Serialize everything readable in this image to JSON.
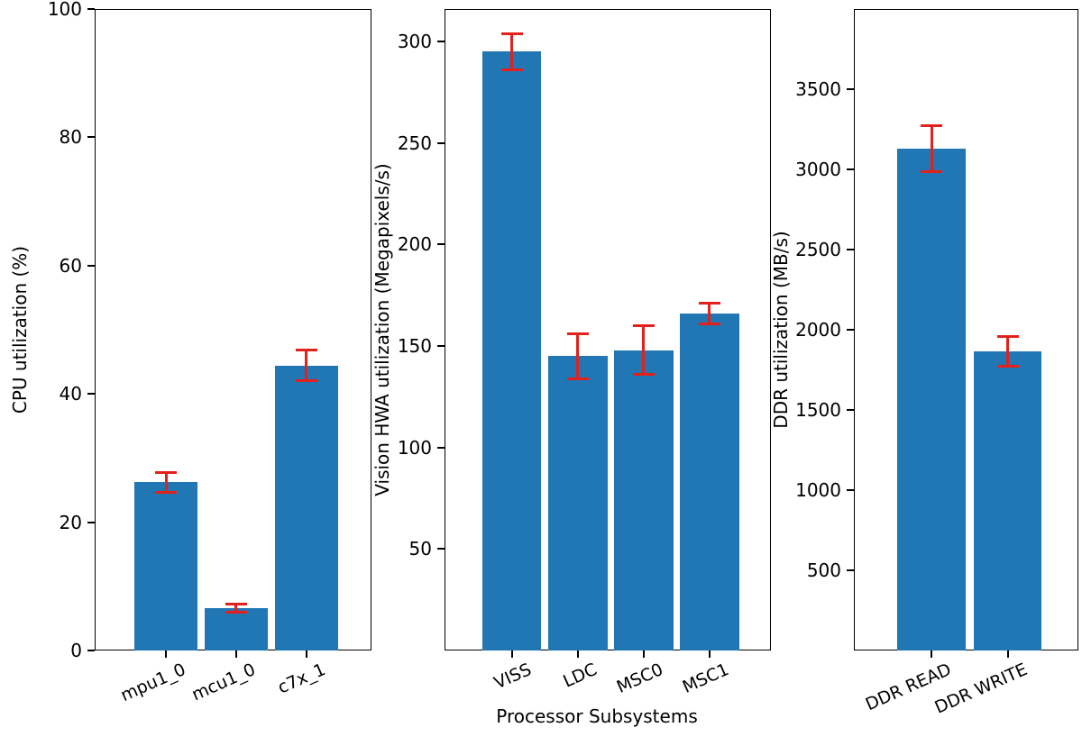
{
  "figure": {
    "xlabel": "Processor Subsystems",
    "bar_color": "#2077b4",
    "error_color": "#e3211c",
    "background": "#ffffff"
  },
  "chart_data": [
    {
      "type": "bar",
      "ylabel": "CPU utilization (%)",
      "categories": [
        "mpu1_0",
        "mcu1_0",
        "c7x_1"
      ],
      "values": [
        26.2,
        6.6,
        44.4
      ],
      "errors": [
        1.5,
        0.7,
        2.4
      ],
      "yticks": [
        0,
        20,
        40,
        60,
        80,
        100
      ],
      "ylim": [
        0,
        100
      ],
      "error_bars": true,
      "grid": false,
      "legend": "none"
    },
    {
      "type": "bar",
      "ylabel": "Vision HWA utilization (Megapixels/s)",
      "categories": [
        "VISS",
        "LDC",
        "MSC0",
        "MSC1"
      ],
      "values": [
        295,
        145,
        148,
        166
      ],
      "errors": [
        9,
        11,
        12,
        5
      ],
      "yticks": [
        50,
        100,
        150,
        200,
        250,
        300
      ],
      "ylim": [
        0,
        316
      ],
      "error_bars": true,
      "grid": false,
      "legend": "none"
    },
    {
      "type": "bar",
      "ylabel": "DDR utilization (MB/s)",
      "categories": [
        "DDR READ",
        "DDR WRITE"
      ],
      "values": [
        3130,
        1865
      ],
      "errors": [
        145,
        95
      ],
      "yticks": [
        500,
        1000,
        1500,
        2000,
        2500,
        3000,
        3500
      ],
      "ylim": [
        0,
        4000
      ],
      "error_bars": true,
      "grid": false,
      "legend": "none"
    }
  ]
}
